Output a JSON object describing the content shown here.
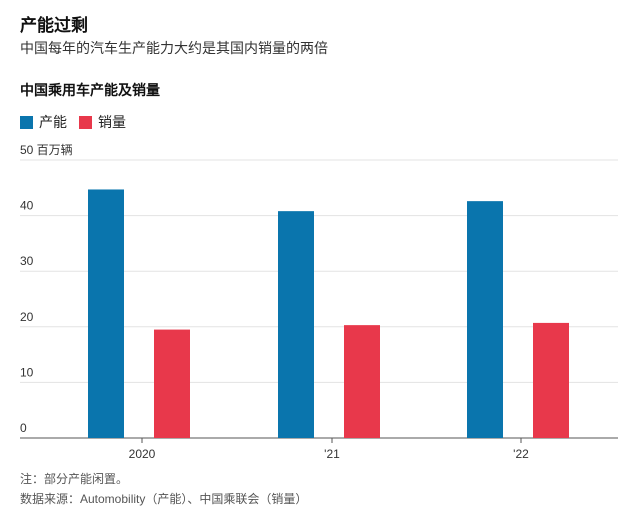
{
  "title": "产能过剩",
  "subtitle": "中国每年的汽车生产能力大约是其国内销量的两倍",
  "chart_data": {
    "type": "bar",
    "title": "中国乘用车产能及销量",
    "categories": [
      "2020",
      "'21",
      "'22"
    ],
    "series": [
      {
        "name": "产能",
        "color": "#0a75ad",
        "values": [
          44.7,
          40.8,
          42.6
        ]
      },
      {
        "name": "销量",
        "color": "#e8384b",
        "values": [
          19.5,
          20.3,
          20.7
        ]
      }
    ],
    "ylim": [
      0,
      50
    ],
    "yticks": [
      0,
      10,
      20,
      30,
      40,
      50
    ],
    "ytick_labels": [
      "0",
      "10",
      "20",
      "30",
      "40",
      "50 百万辆"
    ],
    "grid": true
  },
  "notes": {
    "note": "注：部分产能闲置。",
    "source": "数据来源：Automobility（产能）、中国乘联会（销量）"
  }
}
